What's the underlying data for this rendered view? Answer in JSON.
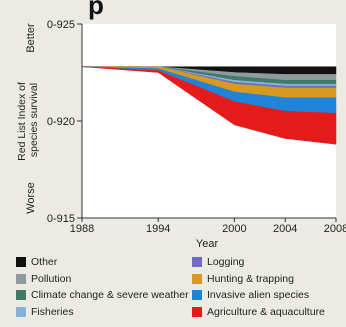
{
  "header_fragment": "p",
  "chart_data": {
    "type": "area",
    "ylabel": "Red List Index of species survival",
    "xlabel": "Year",
    "y_top_label": "Better",
    "y_bottom_label": "Worse",
    "ylim": [
      0.915,
      0.925
    ],
    "yticks": [
      0.925,
      0.92,
      0.915
    ],
    "ytick_labels": [
      "0-925",
      "0-920",
      "0-915"
    ],
    "xlim": [
      1988,
      2008
    ],
    "xticks": [
      1988,
      1994,
      2000,
      2004,
      2008
    ],
    "x": [
      1988,
      1994,
      2000,
      2004,
      2008
    ],
    "baseline_value": 0.9228,
    "series": [
      {
        "name": "Other",
        "color": "#111111",
        "values": [
          0.0,
          0.0,
          0.0003,
          0.0004,
          0.0004
        ]
      },
      {
        "name": "Pollution",
        "color": "#8f9a9c",
        "values": [
          0.0,
          0.0,
          0.0002,
          0.0003,
          0.0003
        ]
      },
      {
        "name": "Climate change & severe weather",
        "color": "#3f7a6b",
        "values": [
          0.0,
          0.0,
          0.0002,
          0.0002,
          0.0002
        ]
      },
      {
        "name": "Fisheries",
        "color": "#87b2d8",
        "values": [
          0.0,
          0.0,
          0.0001,
          0.0001,
          0.0001
        ]
      },
      {
        "name": "Logging",
        "color": "#6f6dc0",
        "values": [
          0.0,
          0.0,
          0.0001,
          0.0001,
          0.0001
        ]
      },
      {
        "name": "Hunting & trapping",
        "color": "#d79a1e",
        "values": [
          0.0,
          0.0001,
          0.0004,
          0.0005,
          0.0005
        ]
      },
      {
        "name": "Invasive alien species",
        "color": "#1f84d9",
        "values": [
          0.0,
          0.0001,
          0.0005,
          0.0007,
          0.0008
        ]
      },
      {
        "name": "Agriculture & aquaculture",
        "color": "#e51b1b",
        "values": [
          0.0,
          0.0001,
          0.0012,
          0.0014,
          0.0016
        ]
      }
    ]
  },
  "legend_left": [
    "Other",
    "Pollution",
    "Climate change & severe weather",
    "Fisheries"
  ],
  "legend_right": [
    "Logging",
    "Hunting & trapping",
    "Invasive alien species",
    "Agriculture & aquaculture"
  ],
  "colors": {
    "background": "#ecebe3",
    "plot_area": "#ffffff",
    "axis": "#333333"
  }
}
